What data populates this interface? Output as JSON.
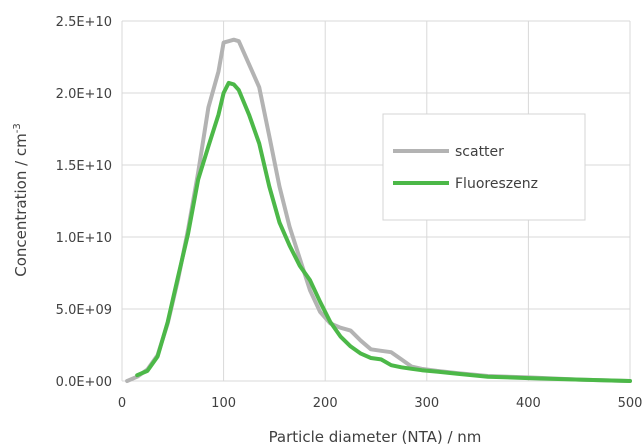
{
  "chart_data": {
    "type": "line",
    "xlabel": "Particle diameter (NTA) / nm",
    "ylabel_main": "Concentration / cm",
    "ylabel_sup": "-3",
    "xlim": [
      0,
      500
    ],
    "ylim": [
      0,
      25000000000
    ],
    "xticks": [
      0,
      100,
      200,
      300,
      400,
      500
    ],
    "xtick_labels": [
      "0",
      "100",
      "200",
      "300",
      "400",
      "500"
    ],
    "yticks": [
      0,
      5000000000,
      10000000000,
      15000000000,
      20000000000,
      25000000000
    ],
    "ytick_labels": [
      "0.0E+00",
      "5.0E+09",
      "1.0E+10",
      "1.5E+10",
      "2.0E+10",
      "2.5E+10"
    ],
    "grid": true,
    "legend_position": "right",
    "series": [
      {
        "name": "scatter",
        "color": "#b3b3b3",
        "x": [
          5,
          15,
          25,
          35,
          45,
          55,
          65,
          75,
          85,
          95,
          100,
          105,
          110,
          115,
          125,
          135,
          145,
          155,
          165,
          175,
          185,
          195,
          205,
          215,
          225,
          235,
          245,
          255,
          265,
          275,
          285,
          295,
          310,
          330,
          360,
          400,
          450,
          500
        ],
        "y": [
          0,
          300000000,
          800000000,
          1800000000,
          4000000000,
          7000000000,
          10500000000,
          14500000000,
          19000000000,
          21500000000,
          23500000000,
          23600000000,
          23700000000,
          23600000000,
          22000000000,
          20400000000,
          17000000000,
          13500000000,
          10700000000,
          8500000000,
          6300000000,
          4800000000,
          4000000000,
          3700000000,
          3500000000,
          2800000000,
          2200000000,
          2100000000,
          2000000000,
          1500000000,
          1000000000,
          850000000,
          700000000,
          550000000,
          350000000,
          250000000,
          100000000,
          0
        ]
      },
      {
        "name": "Fluoreszenz",
        "color": "#4cb848",
        "x": [
          15,
          25,
          35,
          45,
          55,
          65,
          75,
          85,
          95,
          100,
          105,
          110,
          115,
          125,
          135,
          145,
          155,
          165,
          175,
          185,
          195,
          205,
          215,
          225,
          235,
          245,
          255,
          265,
          275,
          285,
          295,
          310,
          330,
          360,
          400,
          450,
          500
        ],
        "y": [
          400000000,
          700000000,
          1700000000,
          4100000000,
          7200000000,
          10200000000,
          14000000000,
          16300000000,
          18500000000,
          20000000000,
          20700000000,
          20600000000,
          20200000000,
          18500000000,
          16500000000,
          13500000000,
          11000000000,
          9400000000,
          8000000000,
          7000000000,
          5500000000,
          4100000000,
          3100000000,
          2400000000,
          1900000000,
          1600000000,
          1500000000,
          1100000000,
          950000000,
          850000000,
          750000000,
          650000000,
          500000000,
          300000000,
          200000000,
          100000000,
          0
        ]
      }
    ]
  }
}
